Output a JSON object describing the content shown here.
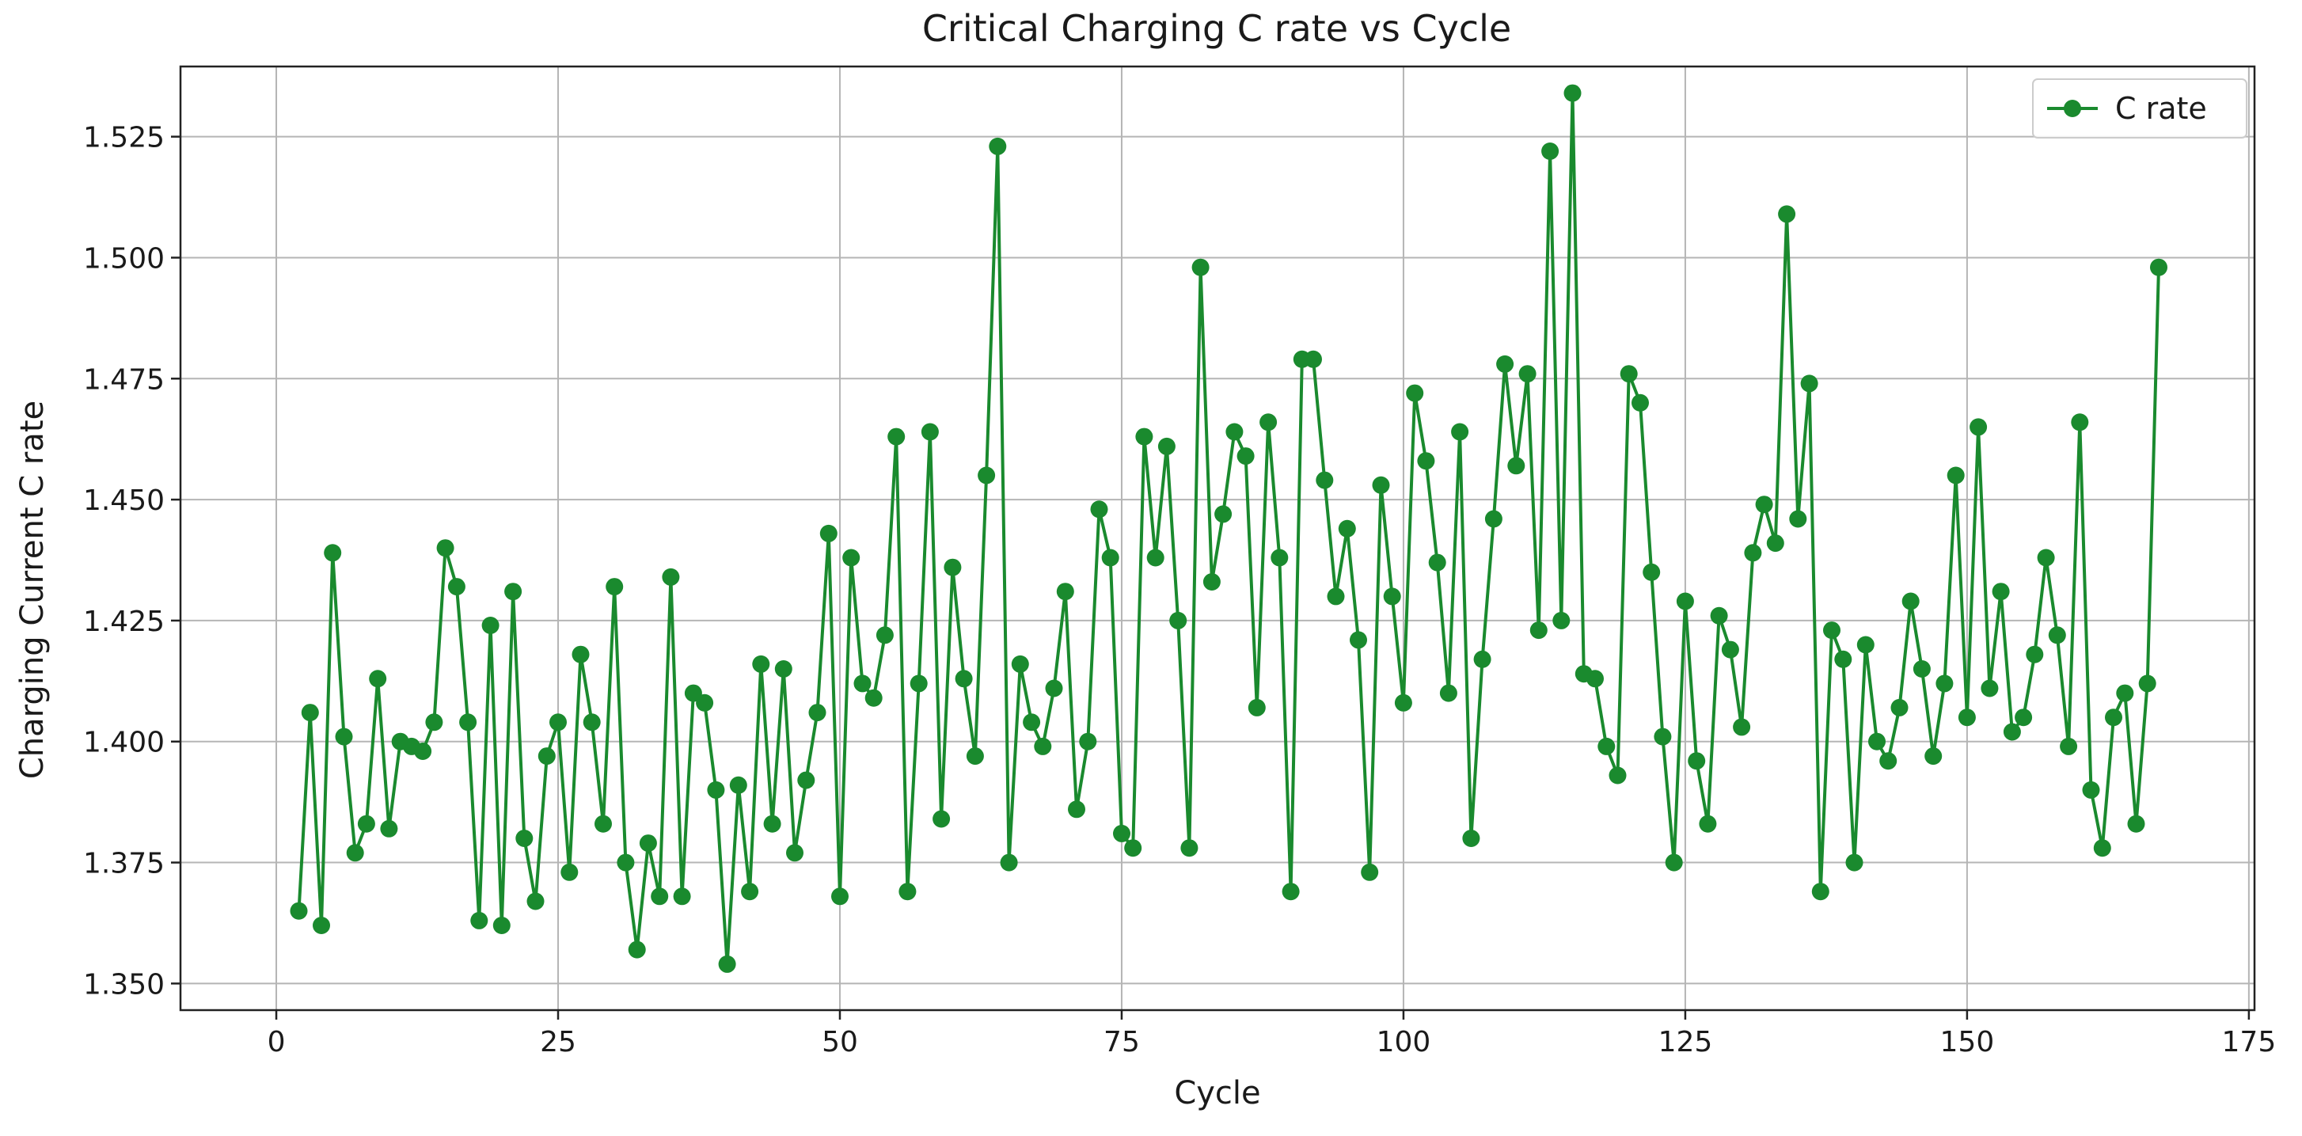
{
  "chart_data": {
    "type": "line",
    "title": "Critical Charging C rate vs Cycle",
    "xlabel": "Cycle",
    "ylabel": "Charging Current C rate",
    "xlim": [
      -8.5,
      175.5
    ],
    "ylim": [
      1.3445,
      1.5395
    ],
    "x_ticks": [
      0,
      25,
      50,
      75,
      100,
      125,
      150,
      175
    ],
    "x_tick_labels": [
      "0",
      "25",
      "50",
      "75",
      "100",
      "125",
      "150",
      "175"
    ],
    "y_ticks": [
      1.35,
      1.375,
      1.4,
      1.425,
      1.45,
      1.475,
      1.5,
      1.525
    ],
    "y_tick_labels": [
      "1.350",
      "1.375",
      "1.400",
      "1.425",
      "1.450",
      "1.475",
      "1.500",
      "1.525"
    ],
    "grid": true,
    "legend_position": "top-right",
    "series": [
      {
        "name": "C rate",
        "color": "#1a8a2e",
        "marker": "circle",
        "x": [
          2,
          3,
          4,
          5,
          6,
          7,
          8,
          9,
          10,
          11,
          12,
          13,
          14,
          15,
          16,
          17,
          18,
          19,
          20,
          21,
          22,
          23,
          24,
          25,
          26,
          27,
          28,
          29,
          30,
          31,
          32,
          33,
          34,
          35,
          36,
          37,
          38,
          39,
          40,
          41,
          42,
          43,
          44,
          45,
          46,
          47,
          48,
          49,
          50,
          51,
          52,
          53,
          54,
          55,
          56,
          57,
          58,
          59,
          60,
          61,
          62,
          63,
          64,
          65,
          66,
          67,
          68,
          69,
          70,
          71,
          72,
          73,
          74,
          75,
          76,
          77,
          78,
          79,
          80,
          81,
          82,
          83,
          84,
          85,
          86,
          87,
          88,
          89,
          90,
          91,
          92,
          93,
          94,
          95,
          96,
          97,
          98,
          99,
          100,
          101,
          102,
          103,
          104,
          105,
          106,
          107,
          108,
          109,
          110,
          111,
          112,
          113,
          114,
          115,
          116,
          117,
          118,
          119,
          120,
          121,
          122,
          123,
          124,
          125,
          126,
          127,
          128,
          129,
          130,
          131,
          132,
          133,
          134,
          135,
          136,
          137,
          138,
          139,
          140,
          141,
          142,
          143,
          144,
          145,
          146,
          147,
          148,
          149,
          150,
          151,
          152,
          153,
          154,
          155,
          156,
          157,
          158,
          159,
          160,
          161,
          162,
          163,
          164,
          165,
          166,
          167
        ],
        "y": [
          1.365,
          1.406,
          1.362,
          1.439,
          1.401,
          1.377,
          1.383,
          1.413,
          1.382,
          1.4,
          1.399,
          1.398,
          1.404,
          1.44,
          1.432,
          1.404,
          1.363,
          1.424,
          1.362,
          1.431,
          1.38,
          1.367,
          1.397,
          1.404,
          1.373,
          1.418,
          1.404,
          1.383,
          1.432,
          1.375,
          1.357,
          1.379,
          1.368,
          1.434,
          1.368,
          1.41,
          1.408,
          1.39,
          1.354,
          1.391,
          1.369,
          1.416,
          1.383,
          1.415,
          1.377,
          1.392,
          1.406,
          1.443,
          1.368,
          1.438,
          1.412,
          1.409,
          1.422,
          1.463,
          1.369,
          1.412,
          1.464,
          1.384,
          1.436,
          1.413,
          1.397,
          1.455,
          1.523,
          1.375,
          1.416,
          1.404,
          1.399,
          1.411,
          1.431,
          1.386,
          1.4,
          1.448,
          1.438,
          1.381,
          1.378,
          1.463,
          1.438,
          1.461,
          1.425,
          1.378,
          1.498,
          1.433,
          1.447,
          1.464,
          1.459,
          1.407,
          1.466,
          1.438,
          1.369,
          1.479,
          1.479,
          1.454,
          1.43,
          1.444,
          1.421,
          1.373,
          1.453,
          1.43,
          1.408,
          1.472,
          1.458,
          1.437,
          1.41,
          1.464,
          1.38,
          1.417,
          1.446,
          1.478,
          1.457,
          1.476,
          1.423,
          1.522,
          1.425,
          1.534,
          1.414,
          1.413,
          1.399,
          1.393,
          1.476,
          1.47,
          1.435,
          1.401,
          1.375,
          1.429,
          1.396,
          1.383,
          1.426,
          1.419,
          1.403,
          1.439,
          1.449,
          1.441,
          1.509,
          1.446,
          1.474,
          1.369,
          1.423,
          1.417,
          1.375,
          1.42,
          1.4,
          1.396,
          1.407,
          1.429,
          1.415,
          1.397,
          1.412,
          1.455,
          1.405,
          1.465,
          1.411,
          1.431,
          1.402,
          1.405,
          1.418,
          1.438,
          1.422,
          1.399,
          1.466,
          1.39,
          1.378,
          1.405,
          1.41,
          1.383,
          1.412,
          1.498
        ]
      }
    ]
  }
}
